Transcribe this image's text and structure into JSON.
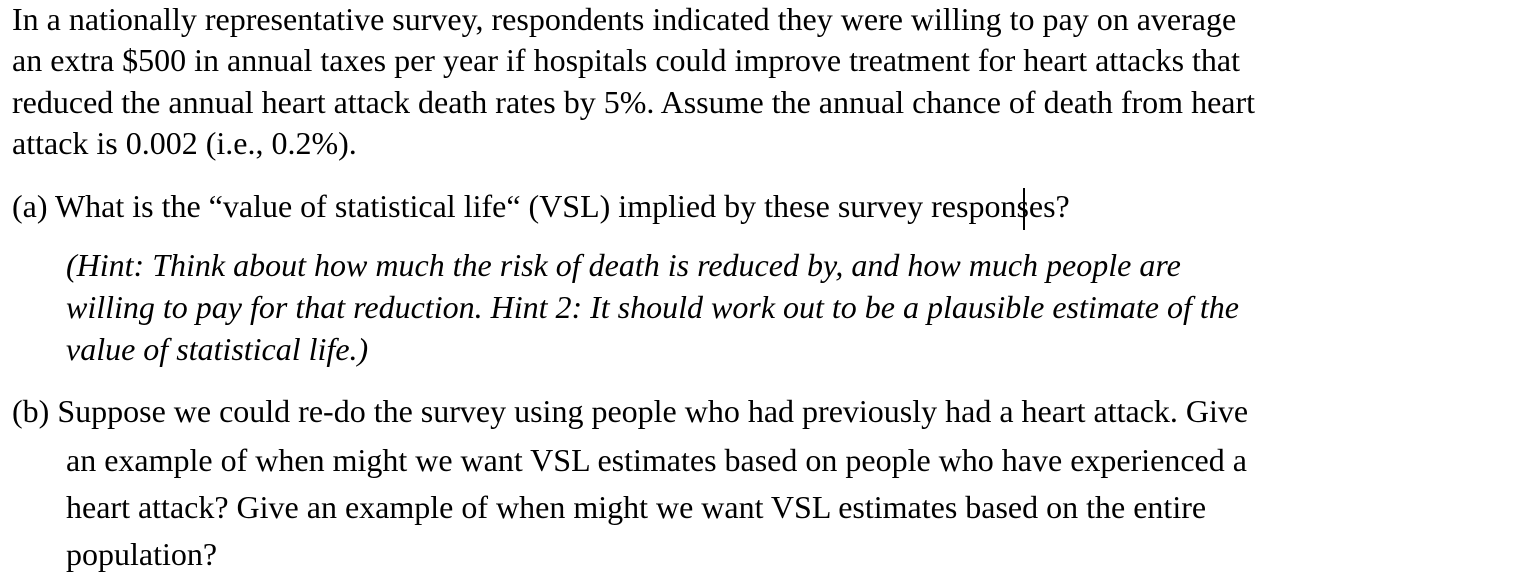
{
  "intro": {
    "lines": [
      "In a nationally representative survey, respondents indicated they were willing to pay on average",
      "an extra $500 in annual taxes per year if hospitals could improve treatment for heart attacks that",
      "reduced the annual heart attack death rates by 5%. Assume the annual chance of death from heart",
      "attack is 0.002 (i.e., 0.2%)."
    ]
  },
  "part_a": {
    "question": "(a) What is the “value of statistical life“ (VSL) implied by these survey responses?",
    "hint_lines": [
      "(Hint: Think about how much the risk of death is reduced by, and how much people are",
      "willing to pay for that reduction. Hint 2: It should work out to be a plausible estimate of the",
      "value of statistical life.)"
    ]
  },
  "part_b": {
    "lines": [
      "(b) Suppose we could re-do the survey using people who had previously had a heart attack. Give",
      "an example of when might we want VSL estimates based on people who have experienced a",
      "heart attack? Give an example of when might we want VSL estimates based on the entire",
      "population?"
    ]
  }
}
